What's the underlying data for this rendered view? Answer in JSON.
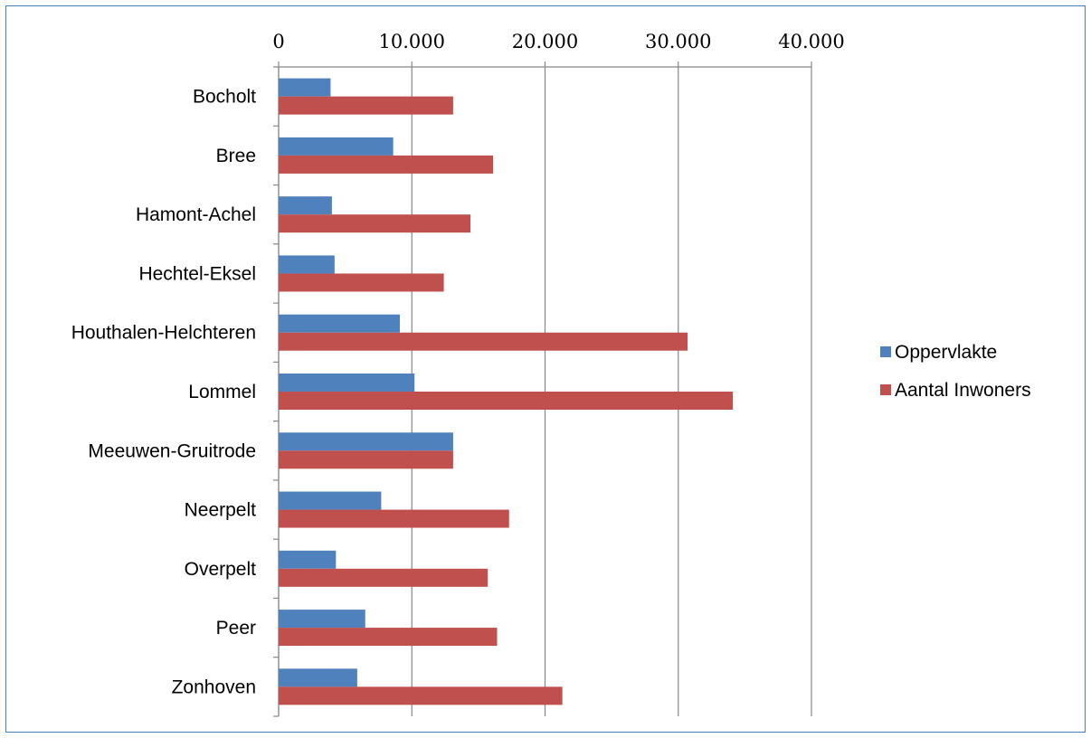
{
  "chart_data": {
    "type": "bar",
    "orientation": "horizontal",
    "axis_position": "top",
    "categories": [
      "Bocholt",
      "Bree",
      "Hamont-Achel",
      "Hechtel-Eksel",
      "Houthalen-Helchteren",
      "Lommel",
      "Meeuwen-Gruitrode",
      "Neerpelt",
      "Overpelt",
      "Peer",
      "Zonhoven"
    ],
    "series": [
      {
        "name": "Oppervlakte",
        "color": "#4f81bd",
        "values": [
          3900,
          8600,
          4000,
          4200,
          9100,
          10200,
          13100,
          7700,
          4300,
          6500,
          5900
        ]
      },
      {
        "name": "Aantal Inwoners",
        "color": "#c0504d",
        "values": [
          13100,
          16100,
          14400,
          12400,
          30700,
          34100,
          13100,
          17300,
          15700,
          16400,
          21300
        ]
      }
    ],
    "xlim": [
      0,
      40000
    ],
    "x_ticks": [
      0,
      10000,
      20000,
      30000,
      40000
    ],
    "x_tick_labels": [
      "0",
      "10.000",
      "20.000",
      "30.000",
      "40.000"
    ],
    "grid": true,
    "legend_position": "right",
    "title": "",
    "xlabel": "",
    "ylabel": ""
  }
}
